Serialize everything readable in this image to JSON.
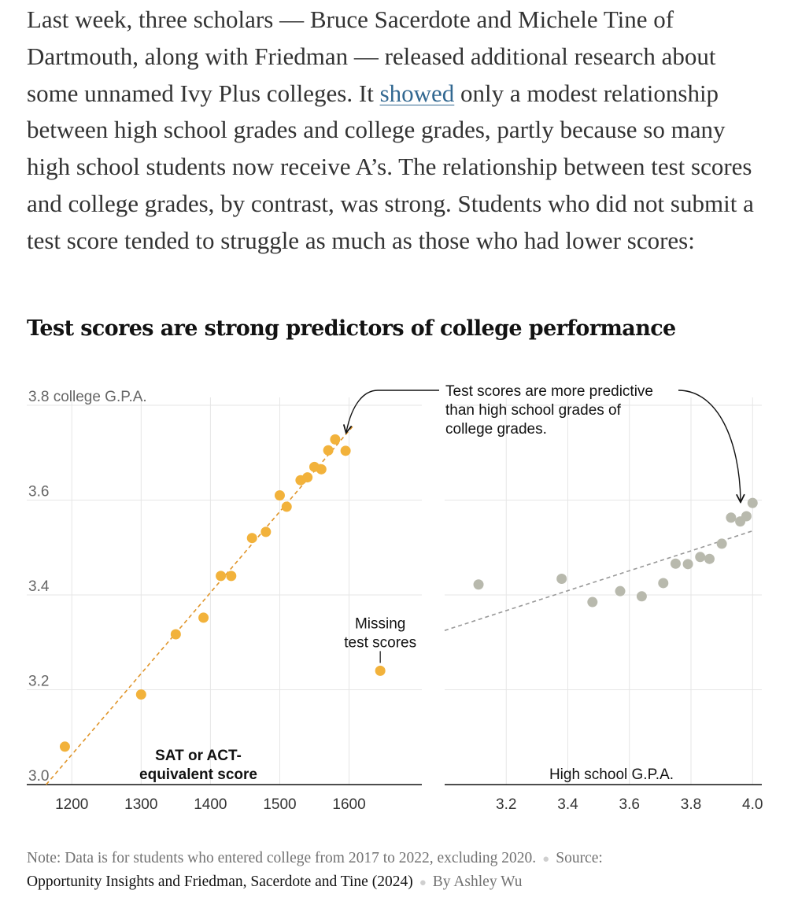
{
  "article": {
    "p_before_link": "Last week, three scholars — Bruce Sacerdote and Michele Tine of Dartmouth, along with Friedman — released additional research about some unnamed Ivy Plus colleges. It ",
    "link_text": "showed",
    "p_after_link": " only a modest relationship between high school grades and college grades, partly because so many high school students now receive A’s. The relationship between test scores and college grades, by contrast, was strong. Students who did not submit a test score tended to struggle as much as those who had lower scores:"
  },
  "chart_title": "Test scores are strong predictors of college performance",
  "chart_data": [
    {
      "type": "scatter",
      "title": "Test scores are strong predictors of college performance",
      "xlabel": "SAT or ACT-equivalent score",
      "xlabel_lines": [
        "SAT or ACT-",
        "equivalent score"
      ],
      "ylabel": "college G.P.A.",
      "xlim": [
        1135,
        1705
      ],
      "ylim": [
        3.0,
        3.8
      ],
      "x_ticks": [
        1200,
        1300,
        1400,
        1500,
        1600
      ],
      "x_tick_labels": [
        "1200",
        "1300",
        "1400",
        "1500",
        "1600"
      ],
      "y_ticks": [
        3.0,
        3.2,
        3.4,
        3.6,
        3.8
      ],
      "y_tick_labels": [
        "3.0",
        "3.2",
        "3.4",
        "3.6",
        "3.8 college G.P.A."
      ],
      "color": "#f2b23b",
      "trend_color": "#e0952a",
      "points": [
        {
          "x": 1190,
          "y": 3.08
        },
        {
          "x": 1300,
          "y": 3.19
        },
        {
          "x": 1350,
          "y": 3.317
        },
        {
          "x": 1390,
          "y": 3.352
        },
        {
          "x": 1415,
          "y": 3.44
        },
        {
          "x": 1430,
          "y": 3.44
        },
        {
          "x": 1460,
          "y": 3.52
        },
        {
          "x": 1480,
          "y": 3.533
        },
        {
          "x": 1500,
          "y": 3.61
        },
        {
          "x": 1510,
          "y": 3.586
        },
        {
          "x": 1530,
          "y": 3.642
        },
        {
          "x": 1540,
          "y": 3.648
        },
        {
          "x": 1550,
          "y": 3.67
        },
        {
          "x": 1560,
          "y": 3.665
        },
        {
          "x": 1570,
          "y": 3.705
        },
        {
          "x": 1580,
          "y": 3.728
        },
        {
          "x": 1595,
          "y": 3.704
        }
      ],
      "trend": {
        "x": [
          1163,
          1605
        ],
        "y": [
          3.0,
          3.755
        ]
      },
      "special_point": {
        "x": 1645,
        "y": 3.24,
        "label_lines": [
          "Missing",
          "test scores"
        ]
      }
    },
    {
      "type": "scatter",
      "xlabel": "High school G.P.A.",
      "xlim": [
        3.0,
        4.03
      ],
      "ylim": [
        3.0,
        3.8
      ],
      "x_ticks": [
        3.2,
        3.4,
        3.6,
        3.8,
        4.0
      ],
      "x_tick_labels": [
        "3.2",
        "3.4",
        "3.6",
        "3.8",
        "4.0"
      ],
      "y_ticks": [
        3.0,
        3.2,
        3.4,
        3.6,
        3.8
      ],
      "color": "#b8b9ad",
      "trend_color": "#999999",
      "points": [
        {
          "x": 3.11,
          "y": 3.422
        },
        {
          "x": 3.38,
          "y": 3.434
        },
        {
          "x": 3.48,
          "y": 3.385
        },
        {
          "x": 3.57,
          "y": 3.408
        },
        {
          "x": 3.64,
          "y": 3.397
        },
        {
          "x": 3.71,
          "y": 3.425
        },
        {
          "x": 3.75,
          "y": 3.466
        },
        {
          "x": 3.79,
          "y": 3.465
        },
        {
          "x": 3.83,
          "y": 3.48
        },
        {
          "x": 3.86,
          "y": 3.476
        },
        {
          "x": 3.9,
          "y": 3.508
        },
        {
          "x": 3.93,
          "y": 3.563
        },
        {
          "x": 3.96,
          "y": 3.555
        },
        {
          "x": 3.98,
          "y": 3.566
        },
        {
          "x": 4.0,
          "y": 3.594
        }
      ],
      "trend": {
        "x": [
          3.0,
          4.0
        ],
        "y": [
          3.325,
          3.535
        ]
      }
    }
  ],
  "annotation": {
    "lines": [
      "Test scores are more predictive",
      "than high school grades of",
      "college grades."
    ]
  },
  "note": {
    "label": "Note:",
    "text": " Data is for students who entered college from 2017 to 2022, excluding 2020.",
    "source_label": "Source:",
    "source_text": "Opportunity Insights and Friedman, Sacerdote and Tine (2024)",
    "byline": "By Ashley Wu"
  }
}
